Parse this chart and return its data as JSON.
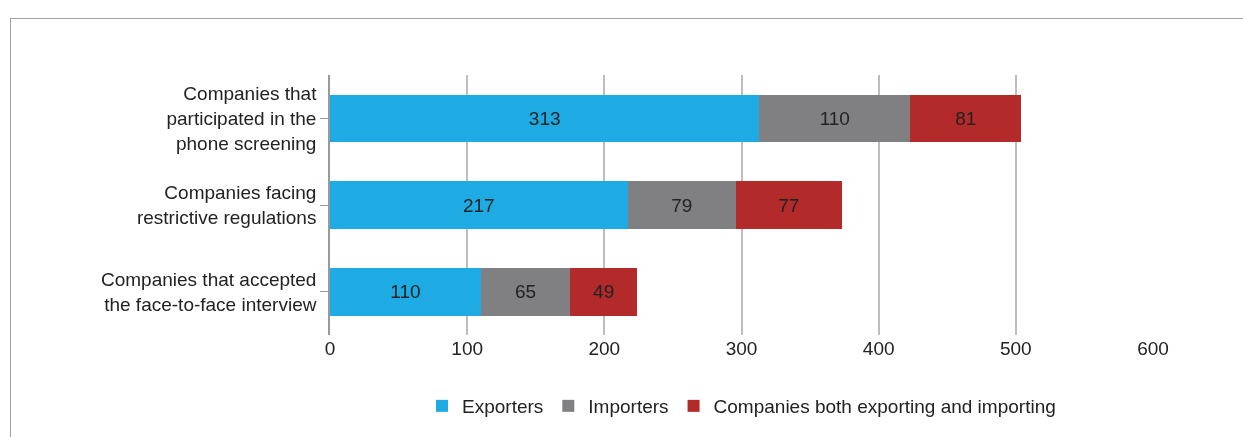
{
  "chart_data": {
    "type": "bar",
    "orientation": "horizontal",
    "stacked": true,
    "data_labels": true,
    "grid": "x",
    "legend": "bottom",
    "categories": [
      "Companies that\nparticipated in the\nphone screening",
      "Companies facing\nrestrictive regulations",
      "Companies that accepted\nthe face-to-face interview"
    ],
    "series": [
      {
        "name": "Exporters",
        "color": "#1eaae2",
        "values": [
          313,
          217,
          110
        ]
      },
      {
        "name": "Importers",
        "color": "#808083",
        "values": [
          110,
          79,
          65
        ]
      },
      {
        "name": "Companies both exporting and importing",
        "color": "#b22a2a",
        "values": [
          81,
          77,
          49
        ]
      }
    ],
    "xlim": [
      0,
      600
    ],
    "xticks": [
      0,
      100,
      200,
      300,
      400,
      500,
      600
    ]
  }
}
